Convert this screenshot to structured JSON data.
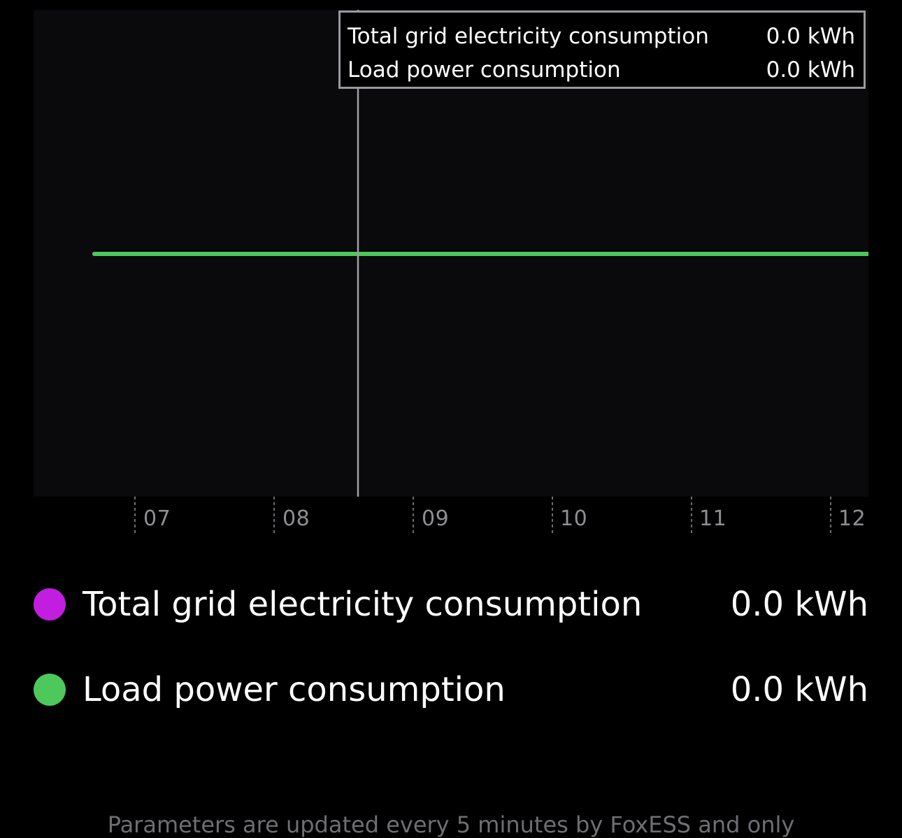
{
  "colors": {
    "grid_series": "#c21ee0",
    "load_series": "#4cc95a"
  },
  "tooltip": {
    "rows": [
      {
        "label": "Total grid electricity consumption",
        "value": "0.0 kWh"
      },
      {
        "label": "Load power consumption",
        "value": "0.0 kWh"
      }
    ]
  },
  "chart_data": {
    "type": "line",
    "x_ticks": [
      "07",
      "08",
      "09",
      "10",
      "11",
      "12"
    ],
    "series": [
      {
        "name": "Total grid electricity consumption",
        "color": "#c21ee0",
        "values": [
          0,
          0,
          0,
          0,
          0,
          0
        ]
      },
      {
        "name": "Load power consumption",
        "color": "#4cc95a",
        "values": [
          0,
          0,
          0,
          0,
          0,
          0
        ]
      }
    ],
    "cursor_x": "08:30",
    "grid": false
  },
  "legend": [
    {
      "label": "Total grid electricity consumption",
      "value": "0.0 kWh",
      "dot_icon": "purple-dot-icon"
    },
    {
      "label": "Load power consumption",
      "value": "0.0 kWh",
      "dot_icon": "green-dot-icon"
    }
  ],
  "footer": {
    "note": "Parameters are updated every 5 minutes by FoxESS and only"
  }
}
